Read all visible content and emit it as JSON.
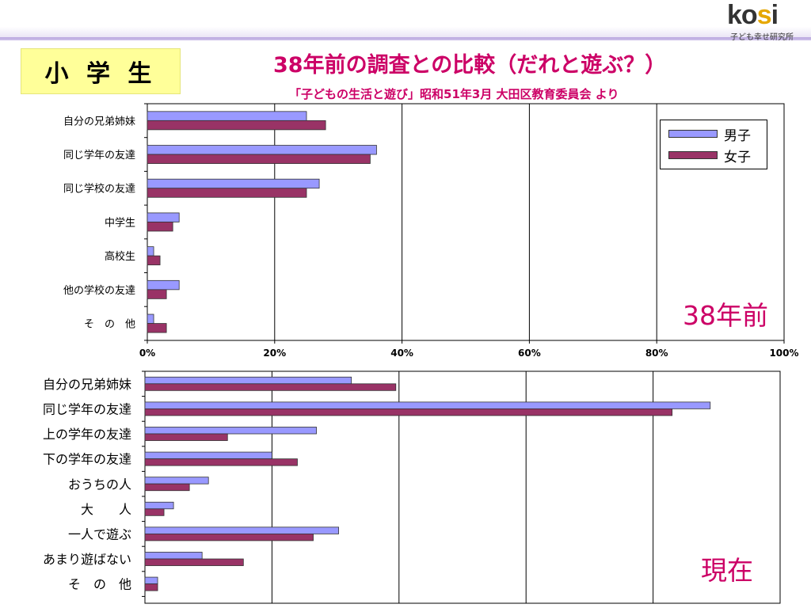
{
  "header": {
    "logo_text": "kosi",
    "logo_subtitle": "子ども幸せ研究所"
  },
  "grade_label": "小 学 生",
  "title": "38年前の調査との比較（だれと遊ぶ？）",
  "subtitle": "「子どもの生活と遊び」昭和51年3月 大田区教育委員会 より",
  "colors": {
    "boys": "#9999ff",
    "girls": "#993366",
    "accent": "#cc0066"
  },
  "legend": {
    "boys": "男子",
    "girls": "女子"
  },
  "chart_data": [
    {
      "type": "bar",
      "orientation": "horizontal",
      "era_label": "38年前",
      "categories": [
        "自分の兄弟姉妹",
        "同じ学年の友達",
        "同じ学校の友達",
        "中学生",
        "高校生",
        "他の学校の友達",
        "そ　の　他"
      ],
      "series": [
        {
          "name": "男子",
          "values": [
            25,
            36,
            27,
            5,
            1,
            5,
            1
          ]
        },
        {
          "name": "女子",
          "values": [
            28,
            35,
            25,
            4,
            2,
            3,
            3
          ]
        }
      ],
      "xlim": [
        0,
        100
      ],
      "xtick_labels": [
        "0%",
        "20%",
        "40%",
        "60%",
        "80%",
        "100%"
      ],
      "grid": true,
      "legend_position": "top-right"
    },
    {
      "type": "bar",
      "orientation": "horizontal",
      "era_label": "現在",
      "categories": [
        "自分の兄弟姉妹",
        "同じ学年の友達",
        "上の学年の友達",
        "下の学年の友達",
        "おうちの人",
        "大　　人",
        "一人で遊ぶ",
        "あまり遊ばない",
        "そ　の　他"
      ],
      "series": [
        {
          "name": "男子",
          "values": [
            32.5,
            89,
            27,
            20,
            10,
            4.5,
            30.5,
            9,
            2
          ]
        },
        {
          "name": "女子",
          "values": [
            39.5,
            83,
            13,
            24,
            7,
            3,
            26.5,
            15.5,
            2
          ]
        }
      ],
      "xlim": [
        0,
        100
      ],
      "grid": true
    }
  ]
}
